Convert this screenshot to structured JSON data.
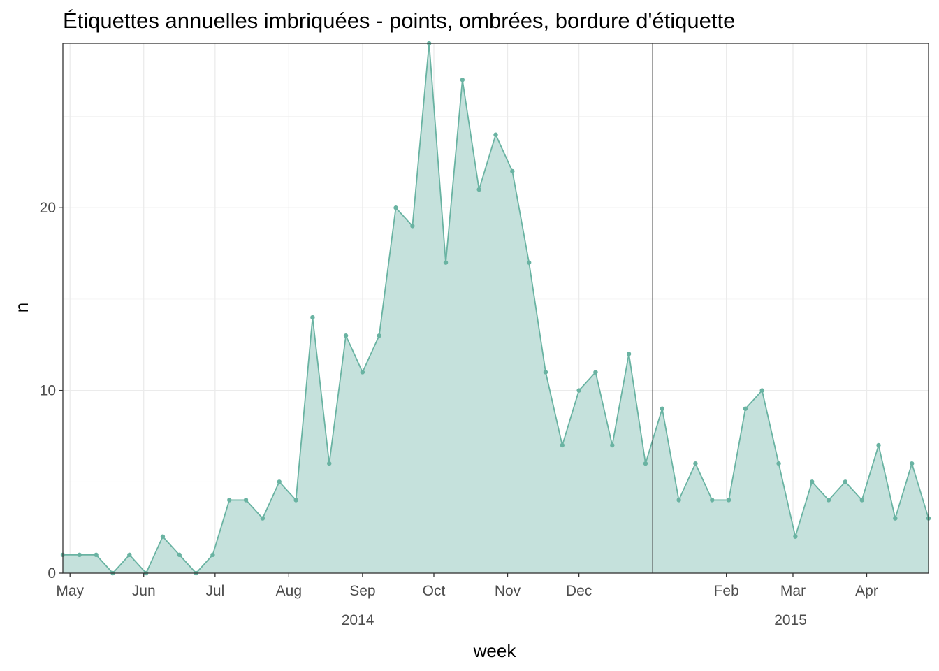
{
  "chart_data": {
    "type": "area",
    "title": "Étiquettes annuelles imbriquées - points, ombrées, bordure d'étiquette",
    "xlabel": "week",
    "ylabel": "n",
    "x_start": "2014-04-28",
    "x_interval_days": 7,
    "values": [
      1,
      1,
      1,
      0,
      1,
      0,
      2,
      1,
      0,
      1,
      4,
      4,
      3,
      5,
      4,
      14,
      6,
      13,
      11,
      13,
      20,
      19,
      29,
      17,
      27,
      21,
      24,
      22,
      17,
      11,
      7,
      10,
      11,
      7,
      12,
      6,
      9,
      4,
      6,
      4,
      4,
      9,
      10,
      6,
      2,
      5,
      4,
      5,
      4,
      7,
      3,
      6,
      3
    ],
    "ylim": [
      0,
      29
    ],
    "y_ticks": [
      0,
      10,
      20
    ],
    "x_month_ticks": [
      {
        "label": "May",
        "date": "2014-05-01"
      },
      {
        "label": "Jun",
        "date": "2014-06-01"
      },
      {
        "label": "Jul",
        "date": "2014-07-01"
      },
      {
        "label": "Aug",
        "date": "2014-08-01"
      },
      {
        "label": "Sep",
        "date": "2014-09-01"
      },
      {
        "label": "Oct",
        "date": "2014-10-01"
      },
      {
        "label": "Nov",
        "date": "2014-11-01"
      },
      {
        "label": "Dec",
        "date": "2014-12-01"
      },
      {
        "label": "Feb",
        "date": "2015-02-01"
      },
      {
        "label": "Mar",
        "date": "2015-03-01"
      },
      {
        "label": "Apr",
        "date": "2015-04-01"
      }
    ],
    "year_labels": [
      "2014",
      "2015"
    ],
    "year_divider": "2015-01-01",
    "grid": true,
    "colors": {
      "line": "#69b3a2",
      "fill": "#c5e1dc",
      "points": "#69b3a2"
    }
  }
}
